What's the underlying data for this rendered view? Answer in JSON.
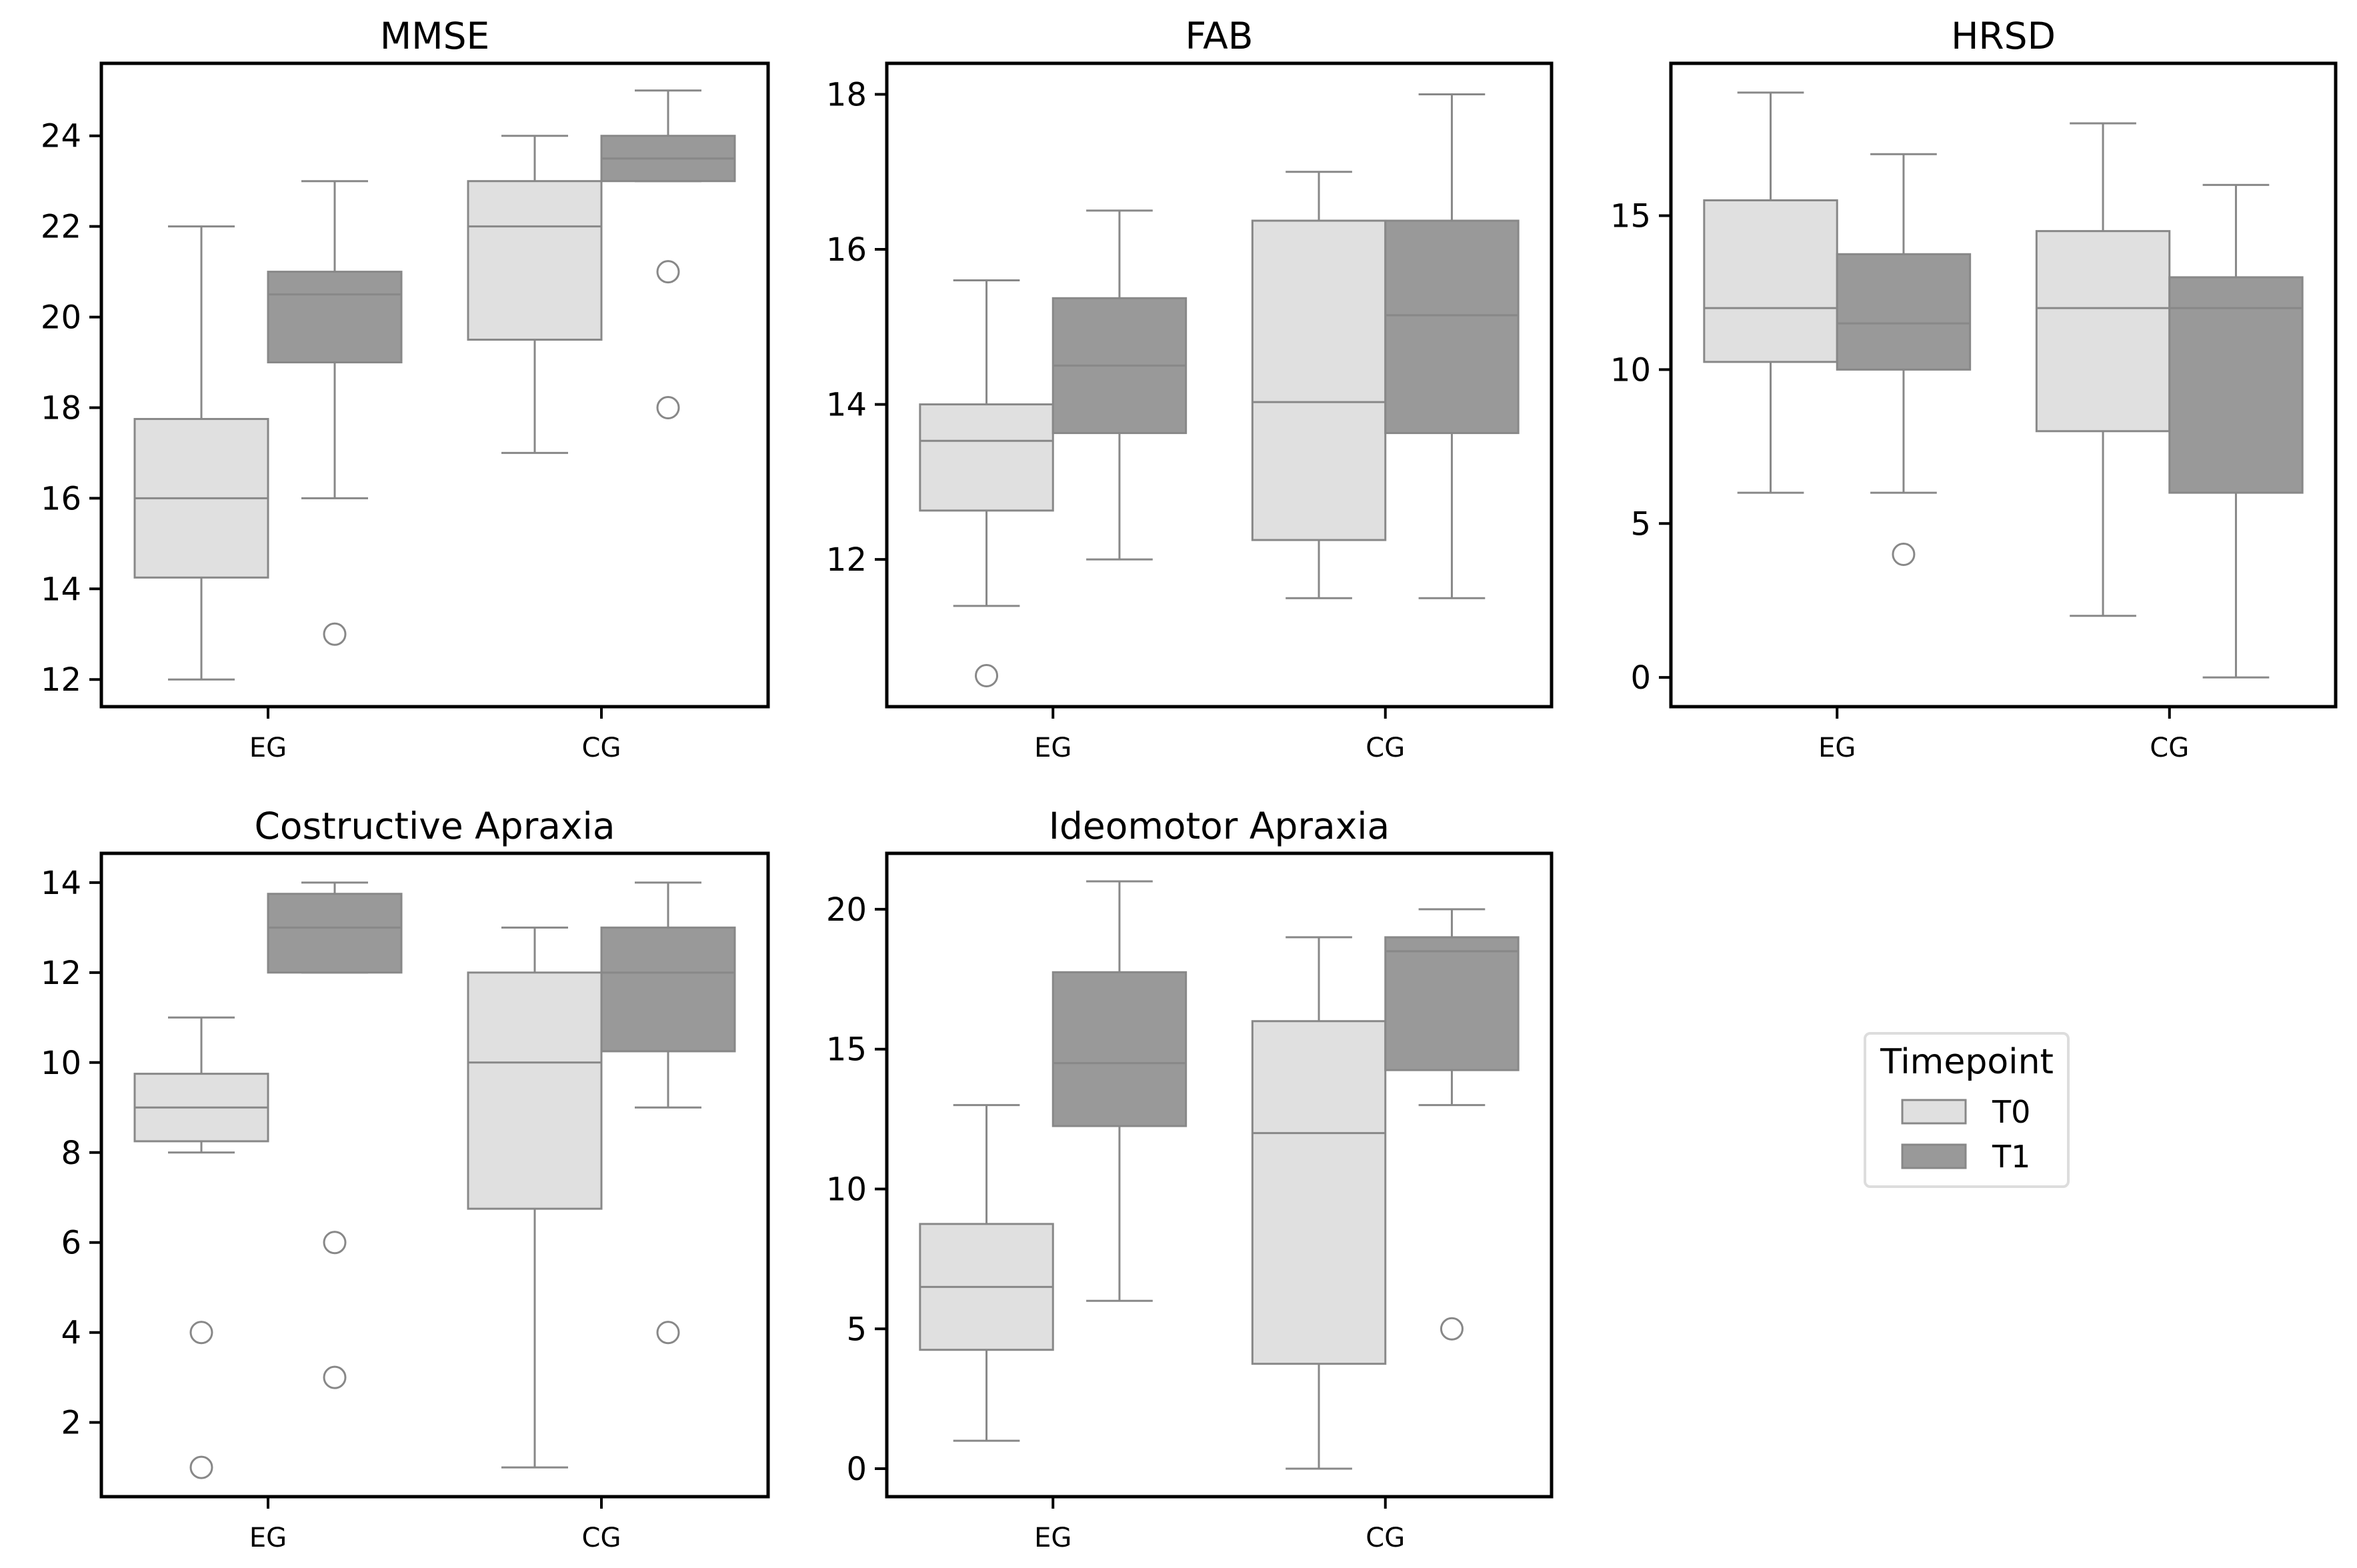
{
  "colors": {
    "T0": "#e0e0e0",
    "T1": "#999999",
    "edge": "#888888",
    "axes": "#000000",
    "background": "#ffffff"
  },
  "legend": {
    "title": "Timepoint",
    "entries": [
      {
        "label": "T0",
        "color_key": "T0"
      },
      {
        "label": "T1",
        "color_key": "T1"
      }
    ]
  },
  "chart_data": [
    {
      "type": "box",
      "title": "MMSE",
      "categories": [
        "EG",
        "CG"
      ],
      "ylim": [
        11.4,
        25.6
      ],
      "yticks": [
        12,
        14,
        16,
        18,
        20,
        22,
        24
      ],
      "series": [
        {
          "name": "T0",
          "boxes": [
            {
              "category": "EG",
              "q1": 14.25,
              "median": 16,
              "q3": 17.75,
              "whisker_low": 12,
              "whisker_high": 22,
              "outliers": []
            },
            {
              "category": "CG",
              "q1": 19.5,
              "median": 22,
              "q3": 23,
              "whisker_low": 17,
              "whisker_high": 24,
              "outliers": []
            }
          ]
        },
        {
          "name": "T1",
          "boxes": [
            {
              "category": "EG",
              "q1": 19,
              "median": 20.5,
              "q3": 21,
              "whisker_low": 16,
              "whisker_high": 23,
              "outliers": [
                13
              ]
            },
            {
              "category": "CG",
              "q1": 23,
              "median": 23.5,
              "q3": 24,
              "whisker_low": 23,
              "whisker_high": 25,
              "outliers": [
                21,
                18
              ]
            }
          ]
        }
      ]
    },
    {
      "type": "box",
      "title": "FAB",
      "categories": [
        "EG",
        "CG"
      ],
      "ylim": [
        10.1,
        18.4
      ],
      "yticks": [
        12,
        14,
        16,
        18
      ],
      "series": [
        {
          "name": "T0",
          "boxes": [
            {
              "category": "EG",
              "q1": 12.63,
              "median": 13.53,
              "q3": 14.0,
              "whisker_low": 11.4,
              "whisker_high": 15.6,
              "outliers": [
                10.5
              ]
            },
            {
              "category": "CG",
              "q1": 12.25,
              "median": 14.03,
              "q3": 16.37,
              "whisker_low": 11.5,
              "whisker_high": 17.0,
              "outliers": []
            }
          ]
        },
        {
          "name": "T1",
          "boxes": [
            {
              "category": "EG",
              "q1": 13.63,
              "median": 14.5,
              "q3": 15.37,
              "whisker_low": 12.0,
              "whisker_high": 16.5,
              "outliers": []
            },
            {
              "category": "CG",
              "q1": 13.63,
              "median": 15.15,
              "q3": 16.37,
              "whisker_low": 11.5,
              "whisker_high": 18.0,
              "outliers": []
            }
          ]
        }
      ]
    },
    {
      "type": "box",
      "title": "HRSD",
      "categories": [
        "EG",
        "CG"
      ],
      "ylim": [
        -0.95,
        19.95
      ],
      "yticks": [
        0,
        5,
        10,
        15
      ],
      "series": [
        {
          "name": "T0",
          "boxes": [
            {
              "category": "EG",
              "q1": 10.25,
              "median": 12,
              "q3": 15.5,
              "whisker_low": 6,
              "whisker_high": 19,
              "outliers": []
            },
            {
              "category": "CG",
              "q1": 8,
              "median": 12,
              "q3": 14.5,
              "whisker_low": 2,
              "whisker_high": 18,
              "outliers": []
            }
          ]
        },
        {
          "name": "T1",
          "boxes": [
            {
              "category": "EG",
              "q1": 10,
              "median": 11.5,
              "q3": 13.75,
              "whisker_low": 6,
              "whisker_high": 17,
              "outliers": [
                4
              ]
            },
            {
              "category": "CG",
              "q1": 6,
              "median": 12,
              "q3": 13,
              "whisker_low": 0,
              "whisker_high": 16,
              "outliers": []
            }
          ]
        }
      ]
    },
    {
      "type": "box",
      "title": "Costructive Apraxia",
      "categories": [
        "EG",
        "CG"
      ],
      "ylim": [
        0.35,
        14.65
      ],
      "yticks": [
        2,
        4,
        6,
        8,
        10,
        12,
        14
      ],
      "series": [
        {
          "name": "T0",
          "boxes": [
            {
              "category": "EG",
              "q1": 8.25,
              "median": 9,
              "q3": 9.75,
              "whisker_low": 8,
              "whisker_high": 11,
              "outliers": [
                4,
                1
              ]
            },
            {
              "category": "CG",
              "q1": 6.75,
              "median": 10,
              "q3": 12,
              "whisker_low": 1,
              "whisker_high": 13,
              "outliers": []
            }
          ]
        },
        {
          "name": "T1",
          "boxes": [
            {
              "category": "EG",
              "q1": 12,
              "median": 13,
              "q3": 13.75,
              "whisker_low": 12,
              "whisker_high": 14,
              "outliers": [
                6,
                3
              ]
            },
            {
              "category": "CG",
              "q1": 10.25,
              "median": 12,
              "q3": 13,
              "whisker_low": 9,
              "whisker_high": 14,
              "outliers": [
                4
              ]
            }
          ]
        }
      ]
    },
    {
      "type": "box",
      "title": "Ideomotor Apraxia",
      "categories": [
        "EG",
        "CG"
      ],
      "ylim": [
        -1.0,
        22.0
      ],
      "yticks": [
        0,
        5,
        10,
        15,
        20
      ],
      "series": [
        {
          "name": "T0",
          "boxes": [
            {
              "category": "EG",
              "q1": 4.25,
              "median": 6.5,
              "q3": 8.75,
              "whisker_low": 1,
              "whisker_high": 13,
              "outliers": []
            },
            {
              "category": "CG",
              "q1": 3.75,
              "median": 12,
              "q3": 16,
              "whisker_low": 0,
              "whisker_high": 19,
              "outliers": []
            }
          ]
        },
        {
          "name": "T1",
          "boxes": [
            {
              "category": "EG",
              "q1": 12.25,
              "median": 14.5,
              "q3": 17.75,
              "whisker_low": 6,
              "whisker_high": 21,
              "outliers": []
            },
            {
              "category": "CG",
              "q1": 14.25,
              "median": 18.5,
              "q3": 19,
              "whisker_low": 13,
              "whisker_high": 20,
              "outliers": [
                5
              ]
            }
          ]
        }
      ]
    }
  ]
}
